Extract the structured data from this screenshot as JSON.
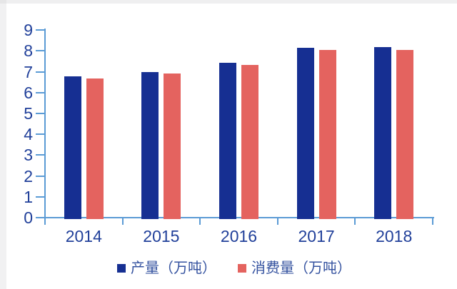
{
  "chart": {
    "background": "#ffffff",
    "axis_color": "#5b9bd5",
    "tick_label_color": "#21409a",
    "legend_text_color": "#33519f"
  },
  "chart_data": {
    "type": "bar",
    "title": "",
    "xlabel": "",
    "ylabel": "",
    "categories": [
      "2014",
      "2015",
      "2016",
      "2017",
      "2018"
    ],
    "series": [
      {
        "name": "产量（万吨）",
        "color": "#162f92",
        "values": [
          6.75,
          6.95,
          7.4,
          8.1,
          8.15
        ]
      },
      {
        "name": "消费量（万吨）",
        "color": "#e4635f",
        "values": [
          6.65,
          6.9,
          7.3,
          8.0,
          8.0
        ]
      }
    ],
    "ylim": [
      0,
      9
    ],
    "ytick_step": 1,
    "grid": false,
    "legend_position": "bottom"
  }
}
